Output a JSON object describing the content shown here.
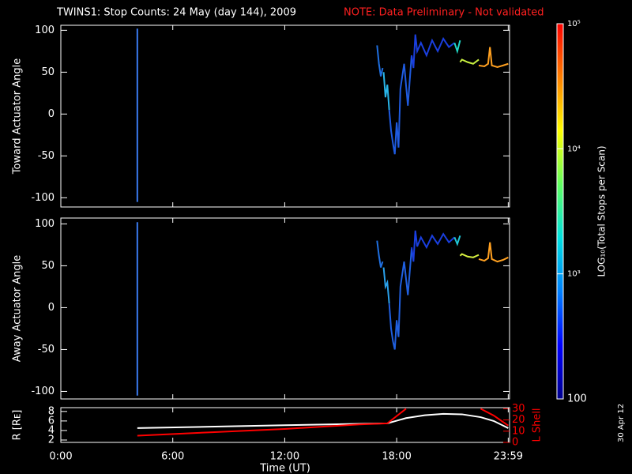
{
  "title": "TWINS1: Stop Counts: 24 May (day 144), 2009",
  "note": "NOTE: Data Preliminary - Not validated",
  "date_stamp": "30 Apr 12",
  "colorbar": {
    "label": "LOG₁₀(Total Stops per Scan)",
    "log": true,
    "lim": [
      100,
      100000
    ],
    "ticks": [
      {
        "value": 100,
        "label": "100"
      },
      {
        "value": 1000,
        "label": "10³"
      },
      {
        "value": 10000,
        "label": "10⁴"
      },
      {
        "value": 100000,
        "label": "10⁵"
      }
    ],
    "colors": [
      "#00008c",
      "#0000ff",
      "#0080ff",
      "#00e0e0",
      "#60ff60",
      "#ffff00",
      "#ff8000",
      "#ff0000"
    ]
  },
  "chart_data": [
    {
      "type": "line",
      "ylabel": "Toward Actuator Angle",
      "xlim": [
        0,
        24.05
      ],
      "xticks": [
        0,
        6,
        12,
        18,
        23.98
      ],
      "ylim": [
        -111,
        106
      ],
      "yticks": [
        -100,
        -50,
        0,
        50,
        100
      ],
      "series": [
        {
          "color": "#3a7bf0",
          "x": [
            4.1,
            4.1
          ],
          "values": [
            -105,
            102
          ]
        },
        {
          "color": "#1f6fe0",
          "x": [
            16.95,
            17.05,
            17.15,
            17.25
          ],
          "values": [
            82,
            60,
            45,
            55
          ]
        },
        {
          "color": "#29b5e8",
          "x": [
            17.3,
            17.4,
            17.5,
            17.6
          ],
          "values": [
            50,
            20,
            35,
            5
          ]
        },
        {
          "color": "#1f5be0",
          "x": [
            17.6,
            17.7,
            17.8,
            17.9,
            18.0,
            18.1,
            18.2,
            18.4,
            18.6,
            18.8
          ],
          "values": [
            5,
            -20,
            -35,
            -48,
            -10,
            -40,
            30,
            60,
            10,
            70
          ]
        },
        {
          "color": "#1a3fe0",
          "x": [
            18.8,
            18.9,
            19.0,
            19.1,
            19.3,
            19.6,
            19.9,
            20.2,
            20.5,
            20.8,
            21.1
          ],
          "values": [
            70,
            55,
            95,
            75,
            85,
            70,
            88,
            75,
            90,
            80,
            85
          ]
        },
        {
          "color": "#20d8c8",
          "x": [
            21.1,
            21.25,
            21.4
          ],
          "values": [
            85,
            75,
            88
          ]
        },
        {
          "color": "#c8f040",
          "x": [
            21.4,
            21.5,
            21.8,
            22.1,
            22.4
          ],
          "values": [
            62,
            65,
            62,
            60,
            65
          ]
        },
        {
          "color": "#ffa020",
          "x": [
            22.4,
            22.7,
            22.9,
            23.0,
            23.1,
            23.4,
            23.7,
            23.98
          ],
          "values": [
            58,
            57,
            60,
            80,
            58,
            56,
            58,
            60
          ]
        }
      ]
    },
    {
      "type": "line",
      "ylabel": "Away Actuator Angle",
      "xlim": [
        0,
        24.05
      ],
      "xticks": [
        0,
        6,
        12,
        18,
        23.98
      ],
      "ylim": [
        -109,
        107
      ],
      "yticks": [
        -100,
        -50,
        0,
        50,
        100
      ],
      "series": [
        {
          "color": "#3a7bf0",
          "x": [
            4.1,
            4.1
          ],
          "values": [
            -105,
            102
          ]
        },
        {
          "color": "#1f6fe0",
          "x": [
            16.95,
            17.05,
            17.15,
            17.25
          ],
          "values": [
            80,
            62,
            48,
            55
          ]
        },
        {
          "color": "#2aa0ea",
          "x": [
            17.3,
            17.4,
            17.5,
            17.6
          ],
          "values": [
            48,
            25,
            30,
            5
          ]
        },
        {
          "color": "#2060e0",
          "x": [
            17.6,
            17.7,
            17.8,
            17.9,
            18.0,
            18.1,
            18.2,
            18.4,
            18.6,
            18.8
          ],
          "values": [
            5,
            -25,
            -40,
            -50,
            -15,
            -35,
            25,
            55,
            15,
            70
          ]
        },
        {
          "color": "#1a3fe0",
          "x": [
            18.8,
            18.9,
            19.0,
            19.1,
            19.3,
            19.6,
            19.9,
            20.2,
            20.5,
            20.8,
            21.1
          ],
          "values": [
            72,
            55,
            92,
            73,
            84,
            72,
            86,
            76,
            88,
            78,
            84
          ]
        },
        {
          "color": "#20c8d8",
          "x": [
            21.1,
            21.25,
            21.4
          ],
          "values": [
            84,
            76,
            86
          ]
        },
        {
          "color": "#d8f040",
          "x": [
            21.4,
            21.5,
            21.8,
            22.1,
            22.4
          ],
          "values": [
            62,
            64,
            61,
            60,
            63
          ]
        },
        {
          "color": "#ffa020",
          "x": [
            22.4,
            22.7,
            22.9,
            23.0,
            23.1,
            23.4,
            23.7,
            23.98
          ],
          "values": [
            58,
            56,
            59,
            78,
            58,
            55,
            57,
            60
          ]
        }
      ]
    },
    {
      "type": "line",
      "ylabel": "R [Rᴇ]",
      "y2label": "L Shell",
      "xlabel": "Time (UT)",
      "xlim": [
        0,
        24.05
      ],
      "xticks": [
        {
          "value": 0,
          "label": "0:00"
        },
        {
          "value": 6,
          "label": "6:00"
        },
        {
          "value": 12,
          "label": "12:00"
        },
        {
          "value": 18,
          "label": "18:00"
        },
        {
          "value": 23.98,
          "label": "23:59"
        }
      ],
      "ylim": [
        1.5,
        8.8
      ],
      "yticks": [
        2,
        4,
        6,
        8
      ],
      "y2lim": [
        0,
        31
      ],
      "y2ticks": [
        0,
        10,
        20,
        30
      ],
      "y2color": "#ff0000",
      "series": [
        {
          "color": "#ffffff",
          "x": [
            4.1,
            8,
            12,
            16,
            17.5,
            18.5,
            19.5,
            20.5,
            21.5,
            22.5,
            23.2,
            23.98
          ],
          "values": [
            4.5,
            4.8,
            5.1,
            5.4,
            5.5,
            6.6,
            7.2,
            7.5,
            7.4,
            6.8,
            6.0,
            4.5
          ]
        },
        {
          "color": "#ff0000",
          "axis": "y2",
          "x": [
            4.1,
            8,
            12,
            16,
            17.5,
            18.5,
            19.5,
            20.5,
            21.5,
            22.5,
            23.2,
            23.98
          ],
          "values": [
            6,
            9,
            12,
            16,
            17,
            30,
            null,
            null,
            null,
            30,
            24,
            15
          ]
        }
      ]
    }
  ]
}
